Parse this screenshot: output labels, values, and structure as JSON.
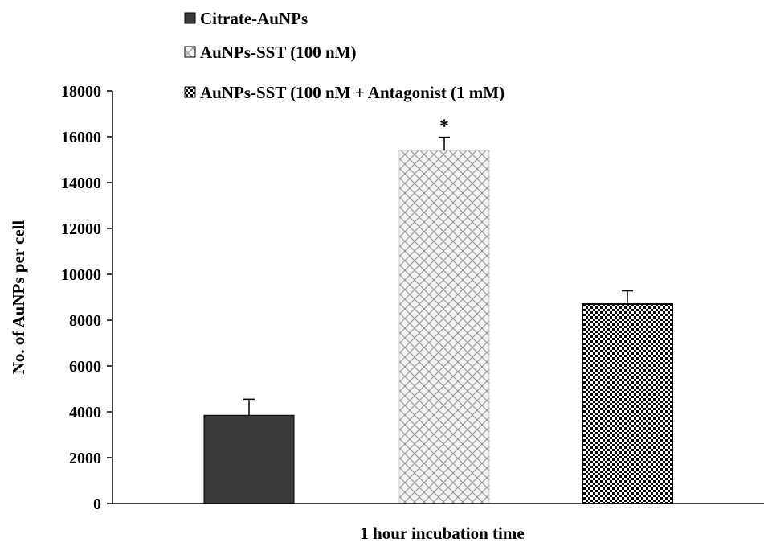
{
  "chart_data": {
    "type": "bar",
    "title": "",
    "xlabel": "1 hour incubation time",
    "ylabel": "No. of AuNPs per cell",
    "ylim": [
      0,
      18000
    ],
    "yticks": [
      0,
      2000,
      4000,
      6000,
      8000,
      10000,
      12000,
      14000,
      16000,
      18000
    ],
    "grid": false,
    "legend_position": "top-left",
    "series": [
      {
        "name": "Citrate-AuNPs",
        "value": 3850,
        "error": 700,
        "annotation": "",
        "color": "#3a3a3a",
        "pattern": "solid"
      },
      {
        "name": "AuNPs-SST (100 nM)",
        "value": 15400,
        "error": 580,
        "annotation": "*",
        "color": "#bdbdbd",
        "pattern": "diamond-hatch"
      },
      {
        "name": "AuNPs-SST (100 nM +  Antagonist (1 mM)",
        "value": 8700,
        "error": 580,
        "annotation": "",
        "color": "#000000",
        "pattern": "checkerboard"
      }
    ]
  }
}
